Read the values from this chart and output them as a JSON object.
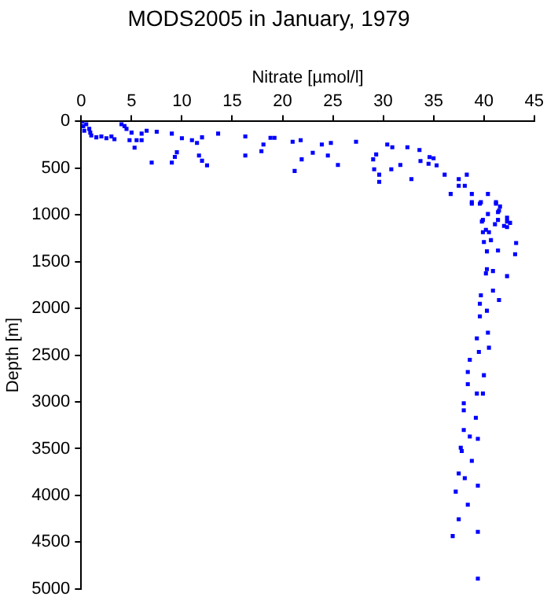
{
  "chart_data": {
    "type": "scatter",
    "title": "MODS2005 in January, 1979",
    "xlabel": "Nitrate [µmol/l]",
    "ylabel": "Depth [m]",
    "xlim": [
      0,
      45
    ],
    "xticks": [
      0,
      5,
      10,
      15,
      20,
      25,
      30,
      35,
      40,
      45
    ],
    "ylim": [
      5000,
      0
    ],
    "yticks": [
      0,
      500,
      1000,
      1500,
      2000,
      2500,
      3000,
      3500,
      4000,
      4500,
      5000
    ],
    "grid": false,
    "legend": false,
    "marker": "square",
    "series": [
      {
        "color": "#0000ff",
        "x": [
          0.1,
          0.2,
          0.3,
          0.5,
          0.8,
          0.9,
          1,
          1.5,
          2,
          2.5,
          3,
          3.3,
          4,
          4.3,
          4.5,
          5,
          5.5,
          6,
          6.5,
          4.8,
          5.3,
          6,
          7,
          7.5,
          9,
          9,
          9.3,
          9.5,
          10,
          11,
          11.5,
          12,
          11.7,
          12,
          12.5,
          13.6,
          16.3,
          16.3,
          17.9,
          18.1,
          18.8,
          19.2,
          21,
          21.2,
          21.8,
          21.9,
          23,
          23.9,
          24.5,
          24.8,
          25.5,
          27.3,
          29,
          29.3,
          29.1,
          29.6,
          29.6,
          30.4,
          30.9,
          30.8,
          31.7,
          32.4,
          32.8,
          33.6,
          33.7,
          34.6,
          34.5,
          35,
          35.3,
          36.1,
          36.7,
          37.5,
          37.5,
          38.3,
          38.1,
          38.8,
          38.8,
          39.7,
          40.4,
          39.9,
          41.2,
          41.5,
          40.2,
          41.4,
          42.3,
          42,
          38.8,
          39.6,
          41.2,
          41.6,
          40.4,
          41.4,
          39.8,
          41.1,
          42.3,
          42.6,
          42.3,
          39.9,
          40.5,
          40,
          40.7,
          43.2,
          40.3,
          41.4,
          43.1,
          40.3,
          40.9,
          40.2,
          42.3,
          40.9,
          39.7,
          41.5,
          39.6,
          40.3,
          39.6,
          40.4,
          39.3,
          40.5,
          39.5,
          38.6,
          38.4,
          40,
          38.4,
          39.3,
          39.9,
          38,
          38,
          39.2,
          38,
          38.6,
          39.4,
          37.7,
          37.8,
          38.8,
          37.5,
          38.1,
          39.4,
          37.2,
          38.4,
          37.5,
          39.4,
          36.9,
          39.4
        ],
        "values": [
          0,
          50,
          100,
          30,
          80,
          120,
          150,
          170,
          160,
          180,
          160,
          190,
          30,
          50,
          80,
          120,
          200,
          130,
          100,
          200,
          280,
          200,
          440,
          110,
          130,
          440,
          380,
          330,
          180,
          200,
          230,
          170,
          365,
          420,
          470,
          130,
          160,
          365,
          318,
          247,
          176,
          176,
          218,
          530,
          200,
          406,
          335,
          247,
          365,
          230,
          465,
          218,
          406,
          353,
          512,
          570,
          647,
          247,
          276,
          512,
          465,
          276,
          617,
          306,
          423,
          382,
          453,
          394,
          470,
          570,
          776,
          617,
          688,
          570,
          688,
          776,
          864,
          864,
          776,
          1053,
          864,
          953,
          1159,
          1053,
          1029,
          1117,
          880,
          880,
          880,
          910,
          990,
          970,
          1070,
          1100,
          1070,
          1085,
          1130,
          1185,
          1185,
          1290,
          1270,
          1300,
          1390,
          1380,
          1420,
          1580,
          1600,
          1625,
          1655,
          1810,
          1860,
          1910,
          1950,
          2025,
          2085,
          2260,
          2320,
          2420,
          2465,
          2550,
          2680,
          2715,
          2810,
          2910,
          2910,
          3015,
          3090,
          3170,
          3300,
          3370,
          3395,
          3490,
          3525,
          3630,
          3765,
          3815,
          3895,
          3960,
          4100,
          4255,
          4390,
          4435,
          4890
        ]
      }
    ]
  }
}
